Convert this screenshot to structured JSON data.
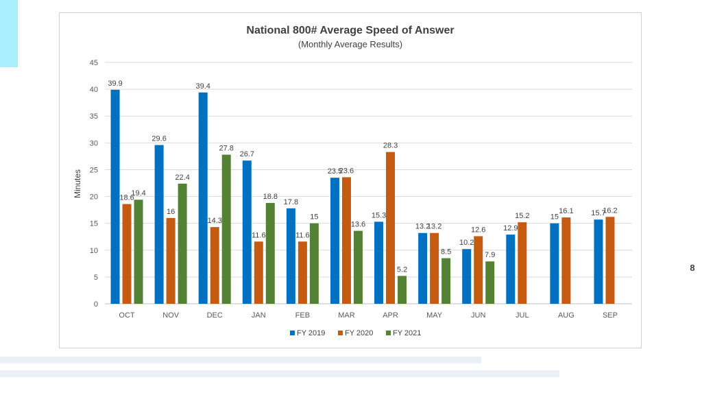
{
  "slide": {
    "page_number": "8"
  },
  "chart_data": {
    "type": "bar",
    "title": "National 800# Average Speed of Answer",
    "subtitle": "(Monthly Average Results)",
    "xlabel": "",
    "ylabel": "Minutes",
    "ylim": [
      0,
      45
    ],
    "yticks": [
      0,
      5,
      10,
      15,
      20,
      25,
      30,
      35,
      40,
      45
    ],
    "grid": true,
    "legend_position": "bottom",
    "categories": [
      "OCT",
      "NOV",
      "DEC",
      "JAN",
      "FEB",
      "MAR",
      "APR",
      "MAY",
      "JUN",
      "JUL",
      "AUG",
      "SEP"
    ],
    "series": [
      {
        "name": "FY 2019",
        "color": "#0070c0",
        "values": [
          39.9,
          29.6,
          39.4,
          26.7,
          17.8,
          23.5,
          15.3,
          13.2,
          10.2,
          12.9,
          15,
          15.7
        ]
      },
      {
        "name": "FY 2020",
        "color": "#c55a11",
        "values": [
          18.6,
          16,
          14.3,
          11.6,
          11.6,
          23.6,
          28.3,
          13.2,
          12.6,
          15.2,
          16.1,
          16.2
        ]
      },
      {
        "name": "FY 2021",
        "color": "#548235",
        "values": [
          19.4,
          22.4,
          27.8,
          18.8,
          15,
          13.6,
          5.2,
          8.5,
          7.9,
          null,
          null,
          null
        ]
      }
    ]
  }
}
